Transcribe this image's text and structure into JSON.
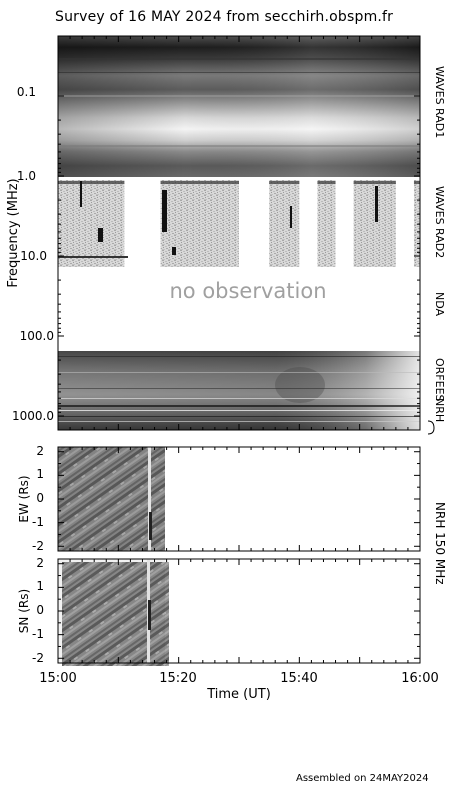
{
  "title": "Survey of 16 MAY 2024 from secchirh.obspm.fr",
  "footer": "Assembled on 24MAY2024",
  "chart_data": [
    {
      "type": "heatmap",
      "name": "dynamic-spectrum",
      "ylabel": "Frequency (MHz)",
      "yscale": "log",
      "yticks": [
        "0.1",
        "1.0",
        "10.0",
        "100.0",
        "1000.0"
      ],
      "bands": [
        {
          "label": "WAVES RAD1",
          "freq_range_mhz": [
            0.02,
            1.0
          ]
        },
        {
          "label": "WAVES RAD2",
          "freq_range_mhz": [
            1.0,
            13.0
          ]
        },
        {
          "label": "NDA",
          "freq_range_mhz": [
            13.0,
            150.0
          ],
          "annotation": "no observation"
        },
        {
          "label": "ORFEES",
          "freq_range_mhz": [
            150.0,
            1000.0
          ]
        },
        {
          "label": "NRH",
          "freq_range_mhz": [
            150.0,
            450.0
          ]
        }
      ],
      "ghost_band_label": "NRH",
      "annotation": "no observation"
    },
    {
      "type": "heatmap",
      "name": "nrh-ew",
      "ylabel": "EW (Rs)",
      "yticks": [
        "2",
        "1",
        "0",
        "-1",
        "-2"
      ],
      "ylim": [
        -2.2,
        2.2
      ],
      "data_until": "15:18"
    },
    {
      "type": "heatmap",
      "name": "nrh-sn",
      "ylabel": "SN (Rs)",
      "yticks": [
        "2",
        "1",
        "0",
        "-1",
        "-2"
      ],
      "ylim": [
        -2.2,
        2.2
      ],
      "data_until": "15:18"
    }
  ],
  "right_label_nrh": "NRH 150 MHz",
  "xaxis": {
    "label": "Time (UT)",
    "ticks": [
      "15:00",
      "15:20",
      "15:40",
      "16:00"
    ],
    "xlim": [
      "15:00",
      "16:00"
    ]
  },
  "rad2_windows": [
    [
      "15:00",
      "15:11"
    ],
    [
      "15:17",
      "15:30"
    ],
    [
      "15:35",
      "15:40"
    ],
    [
      "15:43",
      "15:46"
    ],
    [
      "15:49",
      "15:56"
    ],
    [
      "15:59",
      "16:00"
    ]
  ],
  "colors": {
    "background": "#ffffff",
    "axes": "#000000",
    "annotation": "#a0a0a0"
  }
}
